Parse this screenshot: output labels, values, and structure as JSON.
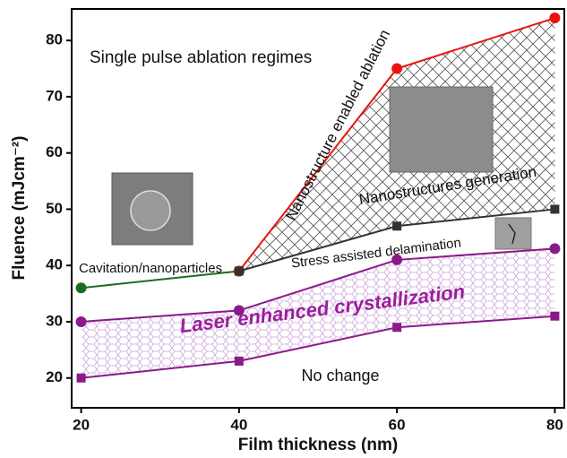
{
  "chart_data": {
    "type": "line",
    "xlabel": "Film thickness (nm)",
    "ylabel": "Fluence (mJcm⁻²)",
    "x": [
      20,
      40,
      60,
      80
    ],
    "series": [
      {
        "color": "#1f6b1f",
        "marker": "circle",
        "values": [
          36,
          39,
          null,
          null
        ]
      },
      {
        "color": "#e8140c",
        "marker": "circle",
        "values": [
          null,
          39,
          75,
          84
        ]
      },
      {
        "color": "#333333",
        "marker": "square",
        "values": [
          null,
          39,
          47,
          50
        ]
      },
      {
        "color": "#8a1a8a",
        "marker": "circle",
        "values": [
          30,
          32,
          41,
          43
        ]
      },
      {
        "color": "#8a1a8a",
        "marker": "square",
        "values": [
          20,
          23,
          29,
          31
        ]
      }
    ],
    "xlim": [
      18.8,
      81.2
    ],
    "xticks": [
      20,
      40,
      60,
      80
    ],
    "ylim": [
      14.7,
      85.6
    ],
    "yticks": [
      20,
      30,
      40,
      50,
      60,
      70,
      80
    ],
    "annotations": [
      "Single pulse ablation regimes",
      "Nanostructure enabled ablation",
      "Nanostructures generation",
      "Stress assisted delamination",
      "Cavitation/nanoparticles",
      "Laser enhanced crystallization",
      "No change"
    ]
  }
}
